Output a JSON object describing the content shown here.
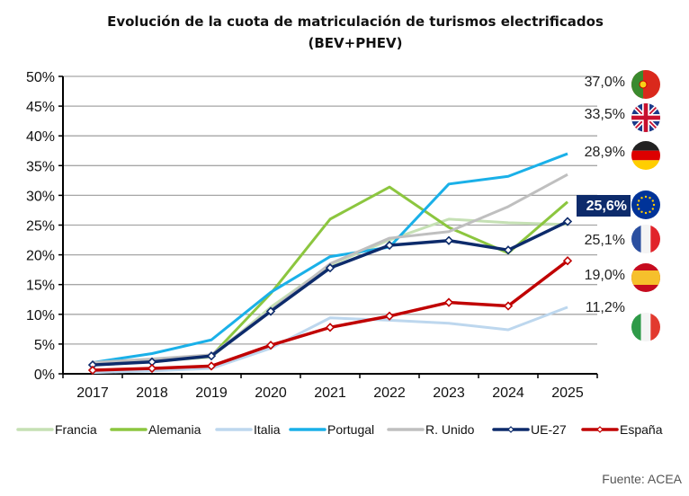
{
  "chart_data": {
    "type": "line",
    "title": "Evolución de la cuota de matriculación de turismos electrificados",
    "subtitle": "(BEV+PHEV)",
    "xlabel": "",
    "ylabel": "",
    "categories": [
      "2017",
      "2018",
      "2019",
      "2020",
      "2021",
      "2022",
      "2023",
      "2024",
      "2025"
    ],
    "ylim": [
      0,
      50
    ],
    "yticks": [
      "0%",
      "5%",
      "10%",
      "15%",
      "20%",
      "25%",
      "30%",
      "35%",
      "40%",
      "45%",
      "50%"
    ],
    "ytick_values": [
      0,
      5,
      10,
      15,
      20,
      25,
      30,
      35,
      40,
      45,
      50
    ],
    "grid": true,
    "legend_position": "bottom",
    "series": [
      {
        "name": "Francia",
        "color": "#c5e0b4",
        "markers": false,
        "values": [
          1.7,
          2.1,
          2.8,
          11.2,
          18.3,
          22.5,
          26.0,
          25.4,
          25.1
        ]
      },
      {
        "name": "Alemania",
        "color": "#8cc63f",
        "markers": false,
        "values": [
          1.6,
          2.0,
          3.0,
          13.5,
          26.0,
          31.4,
          24.6,
          20.3,
          28.9
        ]
      },
      {
        "name": "Italia",
        "color": "#bdd7ee",
        "markers": false,
        "values": [
          0.2,
          0.5,
          0.9,
          4.3,
          9.4,
          9.0,
          8.5,
          7.4,
          11.2
        ]
      },
      {
        "name": "Portugal",
        "color": "#1ab0e8",
        "markers": false,
        "values": [
          1.9,
          3.4,
          5.7,
          13.7,
          19.7,
          21.3,
          31.9,
          33.2,
          37.0
        ]
      },
      {
        "name": "R. Unido",
        "color": "#bfbfbf",
        "markers": false,
        "values": [
          1.9,
          2.5,
          3.2,
          10.7,
          18.5,
          22.8,
          23.9,
          28.1,
          33.5
        ]
      },
      {
        "name": "UE-27",
        "color": "#0d2b6b",
        "markers": true,
        "values": [
          1.5,
          2.0,
          3.0,
          10.5,
          17.8,
          21.6,
          22.4,
          20.8,
          25.6
        ]
      },
      {
        "name": "España",
        "color": "#c00000",
        "markers": true,
        "values": [
          0.6,
          0.9,
          1.3,
          4.8,
          7.8,
          9.7,
          12.0,
          11.4,
          19.0
        ]
      }
    ],
    "end_labels": [
      {
        "series": "Portugal",
        "text": "37,0%",
        "flag": "portugal-flag-icon",
        "highlight": false
      },
      {
        "series": "R. Unido",
        "text": "33,5%",
        "flag": "uk-flag-icon",
        "highlight": false
      },
      {
        "series": "Alemania",
        "text": "28,9%",
        "flag": "germany-flag-icon",
        "highlight": false
      },
      {
        "series": "UE-27",
        "text": "25,6%",
        "flag": "eu-flag-icon",
        "highlight": true
      },
      {
        "series": "Francia",
        "text": "25,1%",
        "flag": "france-flag-icon",
        "highlight": false
      },
      {
        "series": "España",
        "text": "19,0%",
        "flag": "spain-flag-icon",
        "highlight": false
      },
      {
        "series": "Italia",
        "text": "11,2%",
        "flag": "italy-flag-icon",
        "highlight": false
      }
    ],
    "source": "Fuente: ACEA"
  }
}
